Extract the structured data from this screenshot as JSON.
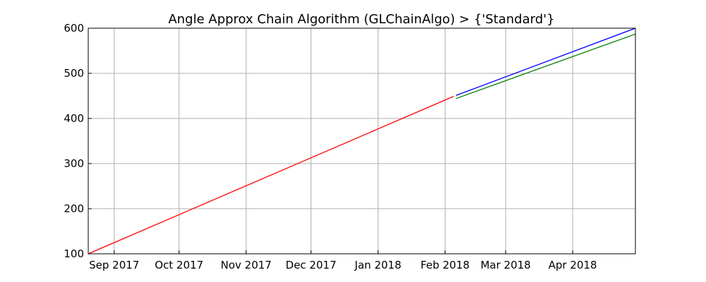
{
  "chart_data": {
    "type": "line",
    "title": "Angle Approx Chain Algorithm (GLChainAlgo) > {'Standard'}",
    "xlabel": "",
    "ylabel": "",
    "xlim": [
      "2017-08-20",
      "2018-04-30"
    ],
    "ylim": [
      100,
      600
    ],
    "grid": true,
    "legend": "none",
    "x_ticks": [
      {
        "date": "2017-09-01",
        "label": "Sep 2017"
      },
      {
        "date": "2017-10-01",
        "label": "Oct 2017"
      },
      {
        "date": "2017-11-01",
        "label": "Nov 2017"
      },
      {
        "date": "2017-12-01",
        "label": "Dec 2017"
      },
      {
        "date": "2018-01-01",
        "label": "Jan 2018"
      },
      {
        "date": "2018-02-01",
        "label": "Feb 2018"
      },
      {
        "date": "2018-03-01",
        "label": "Mar 2018"
      },
      {
        "date": "2018-04-01",
        "label": "Apr 2018"
      }
    ],
    "y_ticks": [
      100,
      200,
      300,
      400,
      500,
      600
    ],
    "series": [
      {
        "color": "#ff0000",
        "points": [
          {
            "x": "2017-08-20",
            "y": 100
          },
          {
            "x": "2018-02-05",
            "y": 449
          }
        ]
      },
      {
        "color": "#0000ff",
        "points": [
          {
            "x": "2018-02-06",
            "y": 451
          },
          {
            "x": "2018-04-30",
            "y": 600
          }
        ]
      },
      {
        "color": "#008000",
        "points": [
          {
            "x": "2018-02-06",
            "y": 444
          },
          {
            "x": "2018-04-30",
            "y": 587
          }
        ]
      }
    ]
  }
}
